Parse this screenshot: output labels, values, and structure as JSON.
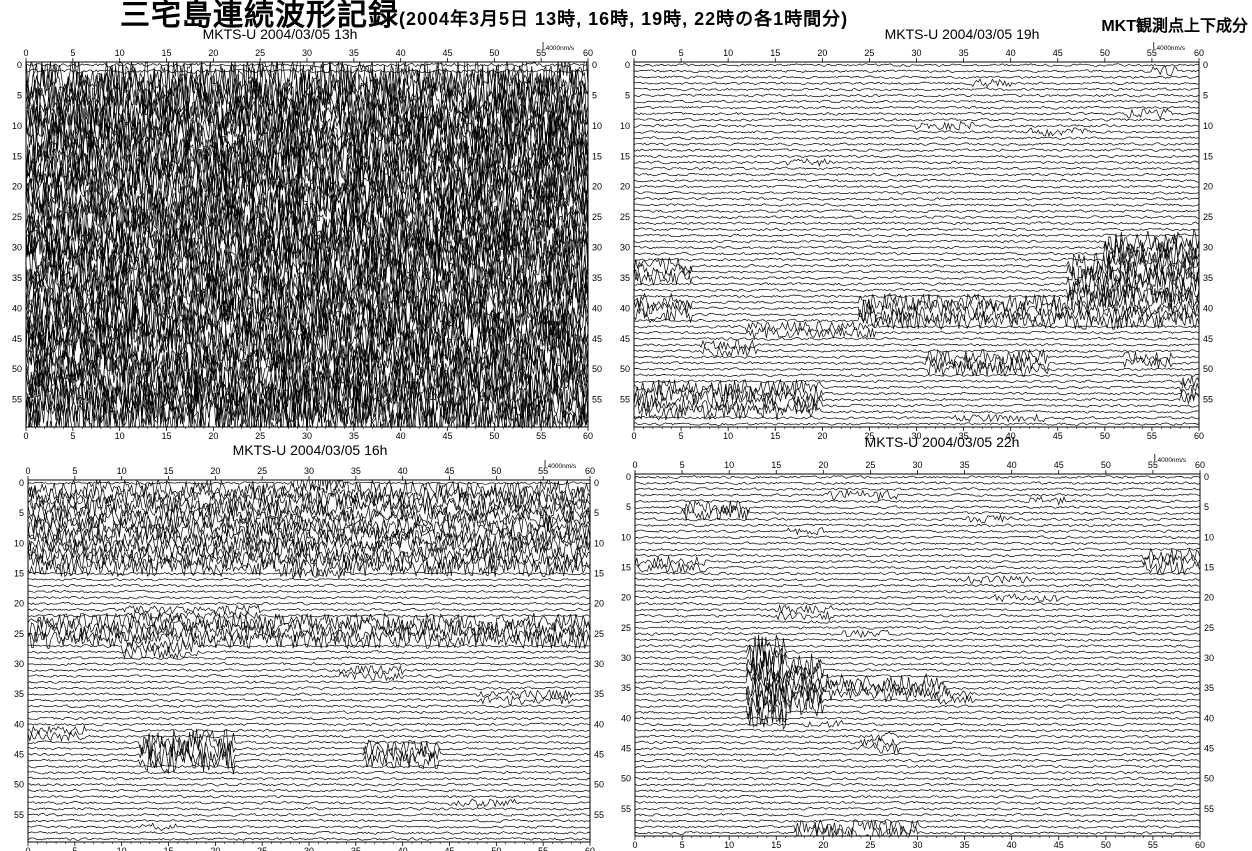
{
  "header": {
    "title": "三宅島連続波形記録",
    "title_sub": "(2004年3月5日 13時, 16時, 19時, 22時の各1時間分)",
    "component_label": "MKT観測点上下成分"
  },
  "chart_data": [
    {
      "type": "line",
      "panel": "top-left",
      "title": "MKTS-U    2004/03/05  13h",
      "x_ticks": [
        0,
        5,
        10,
        15,
        20,
        25,
        30,
        35,
        40,
        45,
        50,
        55,
        60
      ],
      "y_ticks": [
        0,
        5,
        10,
        15,
        20,
        25,
        30,
        35,
        40,
        45,
        50,
        55
      ],
      "xlim": [
        0,
        60
      ],
      "ylim": [
        0,
        60
      ],
      "trace_count": 60,
      "scale_label": "4000nm/s",
      "activity": [
        {
          "trace_start": 0,
          "trace_end": 2,
          "minute_start": 0,
          "minute_end": 60,
          "amplitude": 0.2
        },
        {
          "trace_start": 2,
          "trace_end": 60,
          "minute_start": 0,
          "minute_end": 60,
          "amplitude": 3.8
        }
      ]
    },
    {
      "type": "line",
      "panel": "top-right",
      "title": "MKTS-U    2004/03/05  19h",
      "x_ticks": [
        0,
        5,
        10,
        15,
        20,
        25,
        30,
        35,
        40,
        45,
        50,
        55,
        60
      ],
      "y_ticks": [
        0,
        5,
        10,
        15,
        20,
        25,
        30,
        35,
        40,
        45,
        50,
        55
      ],
      "xlim": [
        0,
        60
      ],
      "ylim": [
        0,
        60
      ],
      "trace_count": 60,
      "scale_label": "4000nm/s",
      "activity": [
        {
          "trace_start": 1,
          "trace_end": 2,
          "minute_start": 55,
          "minute_end": 58,
          "amplitude": 0.9
        },
        {
          "trace_start": 3,
          "trace_end": 4,
          "minute_start": 36,
          "minute_end": 40,
          "amplitude": 0.8
        },
        {
          "trace_start": 8,
          "trace_end": 9,
          "minute_start": 52,
          "minute_end": 57,
          "amplitude": 0.9
        },
        {
          "trace_start": 10,
          "trace_end": 11,
          "minute_start": 30,
          "minute_end": 36,
          "amplitude": 0.8
        },
        {
          "trace_start": 11,
          "trace_end": 12,
          "minute_start": 42,
          "minute_end": 48,
          "amplitude": 0.8
        },
        {
          "trace_start": 16,
          "trace_end": 17,
          "minute_start": 16,
          "minute_end": 21,
          "amplitude": 0.7
        },
        {
          "trace_start": 29,
          "trace_end": 33,
          "minute_start": 50,
          "minute_end": 60,
          "amplitude": 2.2
        },
        {
          "trace_start": 33,
          "trace_end": 40,
          "minute_start": 46,
          "minute_end": 60,
          "amplitude": 2.4
        },
        {
          "trace_start": 33,
          "trace_end": 36,
          "minute_start": 0,
          "minute_end": 6,
          "amplitude": 1.5
        },
        {
          "trace_start": 39,
          "trace_end": 42,
          "minute_start": 0,
          "minute_end": 6,
          "amplitude": 1.6
        },
        {
          "trace_start": 39,
          "trace_end": 43,
          "minute_start": 24,
          "minute_end": 60,
          "amplitude": 1.6
        },
        {
          "trace_start": 43,
          "trace_end": 45,
          "minute_start": 12,
          "minute_end": 26,
          "amplitude": 1.0
        },
        {
          "trace_start": 46,
          "trace_end": 48,
          "minute_start": 7,
          "minute_end": 13,
          "amplitude": 1.0
        },
        {
          "trace_start": 48,
          "trace_end": 51,
          "minute_start": 31,
          "minute_end": 44,
          "amplitude": 1.4
        },
        {
          "trace_start": 48,
          "trace_end": 50,
          "minute_start": 52,
          "minute_end": 57,
          "amplitude": 1.0
        },
        {
          "trace_start": 52,
          "trace_end": 56,
          "minute_start": 58,
          "minute_end": 60,
          "amplitude": 1.4
        },
        {
          "trace_start": 53,
          "trace_end": 58,
          "minute_start": 0,
          "minute_end": 20,
          "amplitude": 1.5
        },
        {
          "trace_start": 58,
          "trace_end": 59,
          "minute_start": 34,
          "minute_end": 44,
          "amplitude": 0.7
        }
      ]
    },
    {
      "type": "line",
      "panel": "bottom-left",
      "title": "MKTS-U    2004/03/05  16h",
      "x_ticks": [
        0,
        5,
        10,
        15,
        20,
        25,
        30,
        35,
        40,
        45,
        50,
        55,
        60
      ],
      "y_ticks": [
        0,
        5,
        10,
        15,
        20,
        25,
        30,
        35,
        40,
        45,
        50,
        55
      ],
      "xlim": [
        0,
        60
      ],
      "ylim": [
        0,
        60
      ],
      "trace_count": 60,
      "scale_label": "4000nm/s",
      "activity": [
        {
          "trace_start": 0,
          "trace_end": 2,
          "minute_start": 28,
          "minute_end": 34,
          "amplitude": 1.6
        },
        {
          "trace_start": 1,
          "trace_end": 15,
          "minute_start": 0,
          "minute_end": 60,
          "amplitude": 1.7
        },
        {
          "trace_start": 13,
          "trace_end": 16,
          "minute_start": 28,
          "minute_end": 34,
          "amplitude": 1.1
        },
        {
          "trace_start": 21,
          "trace_end": 23,
          "minute_start": 10,
          "minute_end": 25,
          "amplitude": 0.8
        },
        {
          "trace_start": 23,
          "trace_end": 27,
          "minute_start": 0,
          "minute_end": 60,
          "amplitude": 1.6
        },
        {
          "trace_start": 27,
          "trace_end": 29,
          "minute_start": 10,
          "minute_end": 18,
          "amplitude": 1.2
        },
        {
          "trace_start": 31,
          "trace_end": 33,
          "minute_start": 33,
          "minute_end": 40,
          "amplitude": 0.8
        },
        {
          "trace_start": 35,
          "trace_end": 37,
          "minute_start": 48,
          "minute_end": 58,
          "amplitude": 0.8
        },
        {
          "trace_start": 41,
          "trace_end": 43,
          "minute_start": 0,
          "minute_end": 6,
          "amplitude": 0.9
        },
        {
          "trace_start": 43,
          "trace_end": 47,
          "minute_start": 12,
          "minute_end": 22,
          "amplitude": 2.5
        },
        {
          "trace_start": 44,
          "trace_end": 47,
          "minute_start": 36,
          "minute_end": 44,
          "amplitude": 1.6
        },
        {
          "trace_start": 53,
          "trace_end": 54,
          "minute_start": 45,
          "minute_end": 52,
          "amplitude": 0.7
        },
        {
          "trace_start": 57,
          "trace_end": 58,
          "minute_start": 12,
          "minute_end": 16,
          "amplitude": 0.7
        }
      ]
    },
    {
      "type": "line",
      "panel": "bottom-right",
      "title": "MKTS-U    2004/03/05  22h",
      "x_ticks": [
        0,
        5,
        10,
        15,
        20,
        25,
        30,
        35,
        40,
        45,
        50,
        55,
        60
      ],
      "y_ticks": [
        0,
        5,
        10,
        15,
        20,
        25,
        30,
        35,
        40,
        45,
        50,
        55
      ],
      "xlim": [
        0,
        60
      ],
      "ylim": [
        0,
        60
      ],
      "trace_count": 60,
      "scale_label": "4000nm/s",
      "activity": [
        {
          "trace_start": 3,
          "trace_end": 4,
          "minute_start": 20,
          "minute_end": 28,
          "amplitude": 0.9
        },
        {
          "trace_start": 4,
          "trace_end": 5,
          "minute_start": 42,
          "minute_end": 46,
          "amplitude": 0.8
        },
        {
          "trace_start": 5,
          "trace_end": 7,
          "minute_start": 5,
          "minute_end": 12,
          "amplitude": 1.3
        },
        {
          "trace_start": 7,
          "trace_end": 8,
          "minute_start": 35,
          "minute_end": 40,
          "amplitude": 0.7
        },
        {
          "trace_start": 9,
          "trace_end": 10,
          "minute_start": 16,
          "minute_end": 20,
          "amplitude": 0.7
        },
        {
          "trace_start": 13,
          "trace_end": 16,
          "minute_start": 54,
          "minute_end": 60,
          "amplitude": 1.3
        },
        {
          "trace_start": 14,
          "trace_end": 16,
          "minute_start": 0,
          "minute_end": 8,
          "amplitude": 1.0
        },
        {
          "trace_start": 17,
          "trace_end": 18,
          "minute_start": 34,
          "minute_end": 42,
          "amplitude": 0.7
        },
        {
          "trace_start": 20,
          "trace_end": 21,
          "minute_start": 38,
          "minute_end": 45,
          "amplitude": 0.7
        },
        {
          "trace_start": 22,
          "trace_end": 24,
          "minute_start": 15,
          "minute_end": 21,
          "amplitude": 0.8
        },
        {
          "trace_start": 26,
          "trace_end": 27,
          "minute_start": 22,
          "minute_end": 27,
          "amplitude": 0.7
        },
        {
          "trace_start": 29,
          "trace_end": 40,
          "minute_start": 12,
          "minute_end": 16,
          "amplitude": 3.2
        },
        {
          "trace_start": 31,
          "trace_end": 39,
          "minute_start": 16,
          "minute_end": 20,
          "amplitude": 2.0
        },
        {
          "trace_start": 34,
          "trace_end": 37,
          "minute_start": 20,
          "minute_end": 33,
          "amplitude": 1.5
        },
        {
          "trace_start": 36,
          "trace_end": 38,
          "minute_start": 32,
          "minute_end": 36,
          "amplitude": 0.8
        },
        {
          "trace_start": 41,
          "trace_end": 42,
          "minute_start": 18,
          "minute_end": 22,
          "amplitude": 0.7
        },
        {
          "trace_start": 43,
          "trace_end": 46,
          "minute_start": 24,
          "minute_end": 28,
          "amplitude": 0.9
        },
        {
          "trace_start": 58,
          "trace_end": 60,
          "minute_start": 17,
          "minute_end": 30,
          "amplitude": 1.4
        }
      ]
    }
  ]
}
